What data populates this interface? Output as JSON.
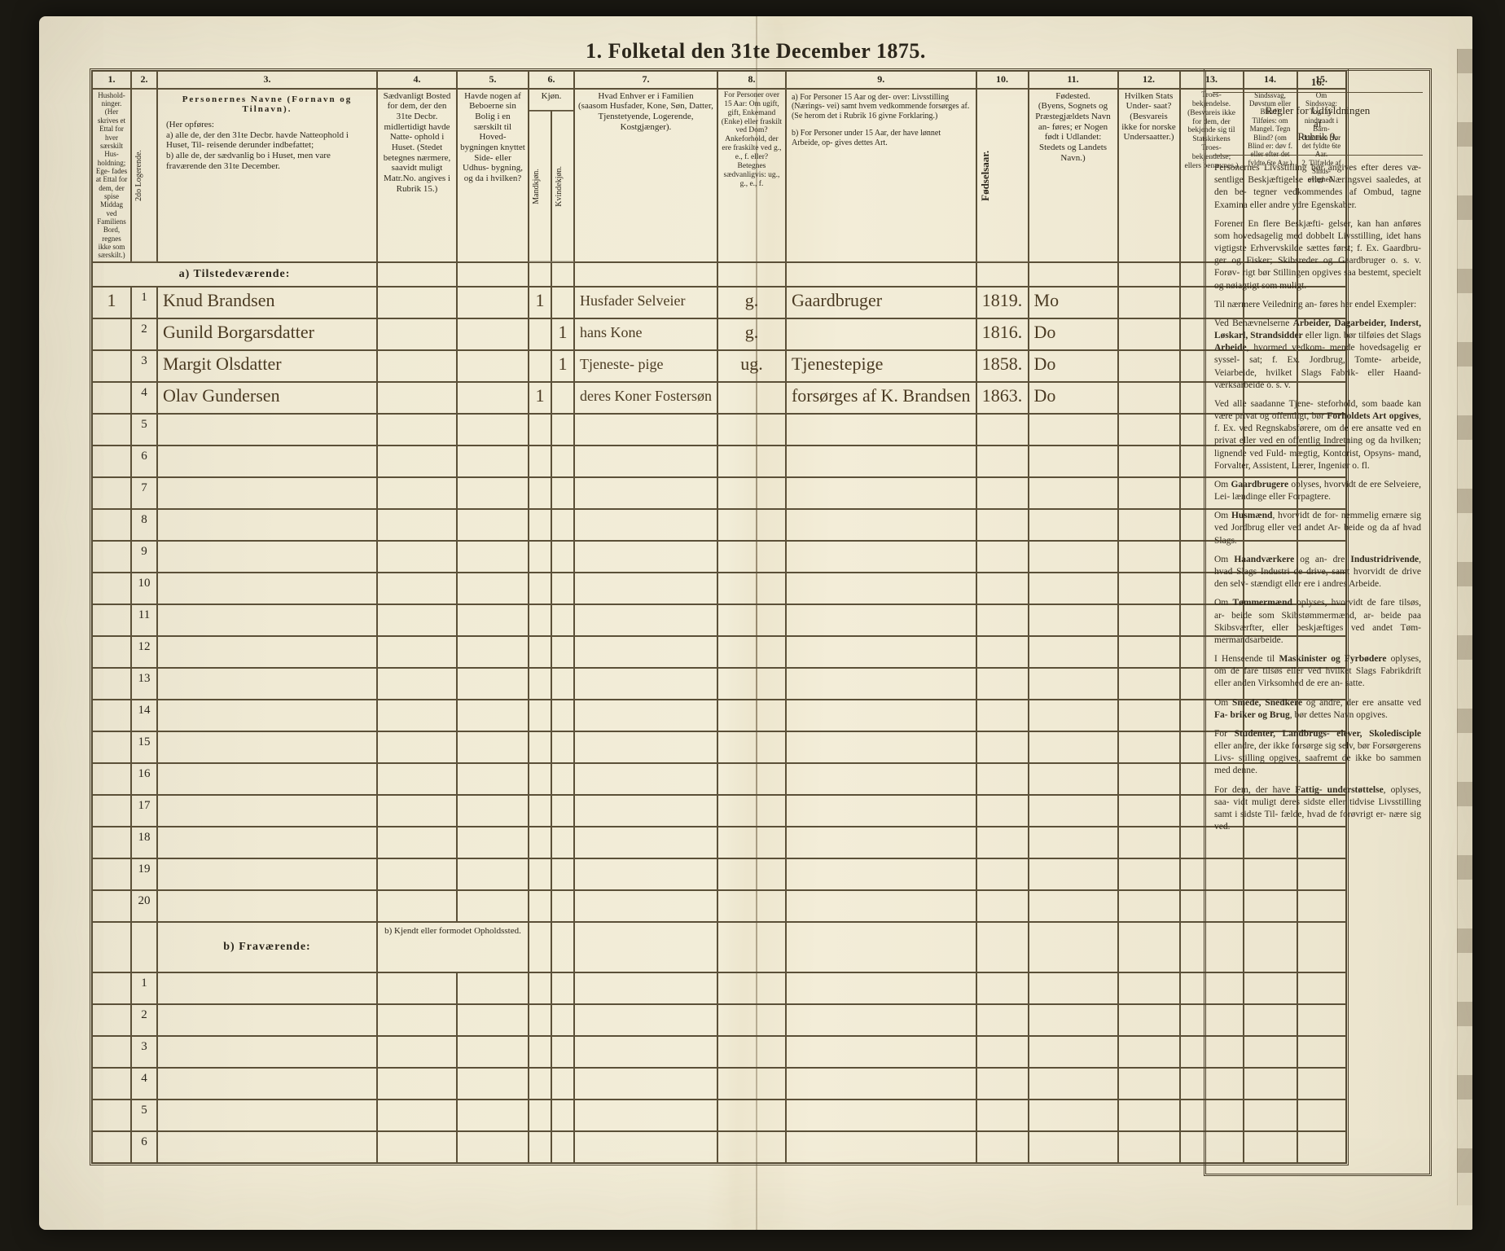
{
  "title": "1.  Folketal den 31te December 1875.",
  "columnNumbers": [
    "1.",
    "2.",
    "3.",
    "4.",
    "5.",
    "6.",
    "7.",
    "8.",
    "9.",
    "10.",
    "11.",
    "12.",
    "13.",
    "14.",
    "15."
  ],
  "headers": {
    "c1": "Hushold-\nninger.",
    "c1sub": "(Her skrives et Ettal for hver særskilt Hus- holdning; Ege- fades at Ettal for dem, der spise Middag ved Familiens Bord, regnes ikke som særskilt.)",
    "c2": "2do Logerende.",
    "c3title": "Personernes Navne (Fornavn og Tilnavn).",
    "c3body": "(Her opføres:\na) alle de, der den 31te Decbr. havde Natteophold i Huset, Til- reisende derunder indbefattet;\nb) alle de, der sædvanlig bo i Huset, men vare fraværende den 31te December.",
    "c4": "Sædvanligt Bosted for dem, der den 31te Decbr. midlertidigt havde Natte- ophold i Huset. (Stedet betegnes nærmere, saavidt muligt Matr.No. angives i Rubrik 15.)",
    "c5": "Havde nogen af Beboerne sin Bolig i en særskilt til Hoved- bygningen knyttet Side- eller Udhus- bygning, og da i hvilken?",
    "c6": "Kjøn.",
    "c6m": "Mandkjøn.",
    "c6k": "Kvindekjøn.",
    "c7": "Hvad Enhver er i Familien\n(saasom Husfader, Kone, Søn, Datter, Tjenstetyende, Logerende, Kostgjænger).",
    "c8": "For Personer over 15 Aar: Om ugift, gift, Enkemand (Enke) eller fraskilt ved Dom?\nAnkeforhold, der ere fraskilte ved g., e., f. eller?\nBetegnes sædvanligvis: ug., g., e., f.",
    "c9a": "a) For Personer 15 Aar og der- over: Livsstilling (Nærings- vei) samt hvem vedkommende forsørges af. (Se herom det i Rubrik 16 givne Forklaring.)",
    "c9b": "b) For Personer under 15 Aar, der have lønnet Arbeide, op- gives dettes Art.",
    "c10": "Fødselsaar.",
    "c11": "Fødested.\n(Byens, Sognets og Præstegjældets Navn an- føres; er Nogen født i Udlandet: Stedets og Landets Navn.)",
    "c12": "Hvilken Stats Under- saat?\n(Besvareis ikke for norske Undersaatter.)",
    "c13": "Troes- bekjendelse.\n(Besvareis ikke for dem, der bekjende sig til Statskirkens Troes- bekjendelse; ellers benævnes.)",
    "c14": "Sindssvag, Døvstum eller Blind?\nTilføies: om Mangel. Tegn Blind? (om Blind er: døv f. eller efter det fyldte 6te Aar.)",
    "c15": "Om Sindssvag: Tog- af- nindtraadt i Barn- dommen (før det fyldte 6te Aar.",
    "c15b": "2. Tilfælde af Sinds- svaghed."
  },
  "sectionA": "a)  Tilstedeværende:",
  "sectionB": "b)  Fraværende:",
  "fravHeader": "b) Kjendt eller formodet Opholdssted.",
  "rows": [
    {
      "n": "1",
      "hh": "1",
      "name": "Knud Brandsen",
      "c6m": "1",
      "c6k": "",
      "fam": "Husfader Selveier",
      "stat": "g.",
      "occ": "Gaardbruger",
      "year": "1819.",
      "place": "Mo"
    },
    {
      "n": "2",
      "hh": "",
      "name": "Gunild Borgarsdatter",
      "c6m": "",
      "c6k": "1",
      "fam": "hans Kone",
      "stat": "g.",
      "occ": "",
      "year": "1816.",
      "place": "Do"
    },
    {
      "n": "3",
      "hh": "",
      "name": "Margit Olsdatter",
      "c6m": "",
      "c6k": "1",
      "fam": "Tjeneste- pige",
      "stat": "ug.",
      "occ": "Tjenestepige",
      "year": "1858.",
      "place": "Do"
    },
    {
      "n": "4",
      "hh": "",
      "name": "Olav Gundersen",
      "c6m": "1",
      "c6k": "",
      "fam": "deres Koner Fostersøn",
      "stat": "",
      "occ": "forsørges af K. Brandsen",
      "year": "1863.",
      "place": "Do"
    }
  ],
  "blankRowNumbers": [
    "5",
    "6",
    "7",
    "8",
    "9",
    "10",
    "11",
    "12",
    "13",
    "14",
    "15",
    "16",
    "17",
    "18",
    "19",
    "20"
  ],
  "fravRowNumbers": [
    "1",
    "2",
    "3",
    "4",
    "5",
    "6"
  ],
  "instr": {
    "no": "16.",
    "title": "Regler for Udfyldningen\naf\nRubrik 9.",
    "paras": [
      "Personernes Livsstilling bør angives efter deres væ- sentlige Beskjæftigelse eller Næringsvei saaledes, at den be- tegner vedkommendes af Ombud, tagne Examina eller andre ydre Egenskaber.",
      "Forener En flere Beskjæfti- gelser, kan han anføres som hovedsagelig med dobbelt Livsstilling, idet hans vigtigste Erhvervskilde sættes først; f. Ex. Gaardbru- ger og Fisker; Skibsreder og Gaardbruger o. s. v. Forøv- rigt bør Stillingen opgives saa bestemt, specielt og nøiagtigt som muligt.",
      "Til nærmere Veiledning an- føres her endel Exempler:",
      "Ved Benævnelserne <b>Arbeider, Dagarbeider, Inderst, Løskarl, Strandsidder</b> eller lign. bør tilføies det Slags <b>Arbeide</b>, hvormed vedkom- mende hovedsagelig er syssel- sat; f. Ex. Jordbrug, Tomte- arbeide, Veiarbeide, hvilket Slags Fabrik- eller Haand- værksarbeide o. s. v.",
      "Ved alle saadanne Tjene- steforhold, som baade kan være privat og offentligt, bør <b>Forholdets Art opgives</b>, f. Ex. ved Regnskabsførere, om de ere ansatte ved en privat eller ved en offentlig Indretning og da hvilken; lignende ved Fuld- mægtig, Kontorist, Opsyns- mand, Forvalter, Assistent, Lærer, Ingeniør o. fl.",
      "Om <b>Gaardbrugere</b> oplyses, hvorvidt de ere Selveiere, Lei- lændinge eller Forpagtere.",
      "Om <b>Husmænd</b>, hvorvidt de for- nemmelig ernære sig ved Jordbrug eller ved andet Ar- beide og da af hvad Slags.",
      "Om <b>Haandværkere</b> og an- dre <b>Industridrivende</b>, hvad Slags Industri de drive, samt hvorvidt de drive den selv- stændigt eller ere i andres Arbeide.",
      "Om <b>Tømmermænd</b> oplyses, hvorvidt de fare tilsøs, ar- beide som Skibstømmermænd, ar- beide paa Skibsværfter, eller beskjæftiges ved andet Tøm- mermandsarbeide.",
      "I Henseende til <b>Maskinister og Fyrbødere</b> oplyses, om de fare tilsøs eller ved hvilket Slags Fabrikdrift eller anden Virksomhed de ere an- satte.",
      "Om <b>Smede, Snedkere</b> og andre, der ere ansatte ved <b>Fa- briker og Brug</b>, bør dettes Navn opgives.",
      "For <b>Studenter, Landbrugs- elever, Skoledisciple</b> eller andre, der ikke forsørge sig selv, bør Forsørgerens Livs- stilling opgives, saafremt de ikke bo sammen med denne.",
      "For dem, der have <b>Fattig- understøttelse</b>, oplyses, saa- vidt muligt deres sidste eller tidvise Livsstilling samt i sidste Til- fælde, hvad de forøvrigt er- nære sig ved."
    ]
  },
  "colWidths": {
    "c1": 46,
    "c2": 30,
    "c3": 268,
    "c4": 96,
    "c5": 86,
    "c6m": 22,
    "c6k": 22,
    "c7": 102,
    "c8": 82,
    "c9": 212,
    "c10": 62,
    "c11": 108,
    "c12": 74,
    "c13": 76,
    "c14": 64,
    "c15": 58
  },
  "colors": {
    "ink": "#2b261b",
    "rule": "#5b5038",
    "handwriting": "#4a3a22"
  }
}
